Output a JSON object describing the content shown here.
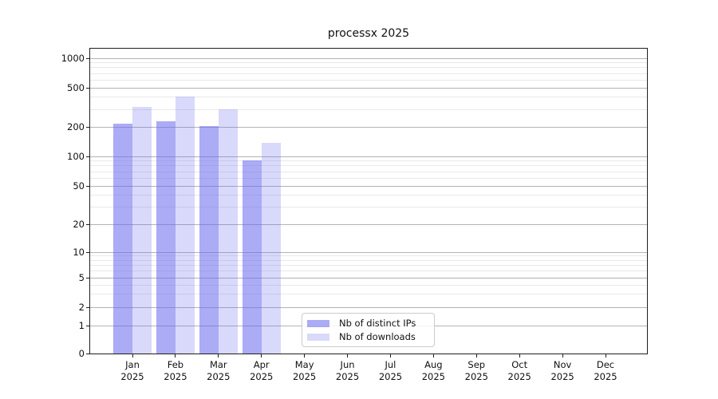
{
  "chart_data": {
    "type": "bar",
    "title": "processx 2025",
    "x_categories": [
      "Jan",
      "Feb",
      "Mar",
      "Apr",
      "May",
      "Jun",
      "Jul",
      "Aug",
      "Sep",
      "Oct",
      "Nov",
      "Dec"
    ],
    "x_year": "2025",
    "series": [
      {
        "name": "Nb of distinct IPs",
        "color": "rgba(102,102,238,0.55)",
        "values": [
          215,
          228,
          203,
          91,
          null,
          null,
          null,
          null,
          null,
          null,
          null,
          null
        ]
      },
      {
        "name": "Nb of downloads",
        "color": "rgba(102,102,238,0.25)",
        "values": [
          320,
          410,
          302,
          138,
          null,
          null,
          null,
          null,
          null,
          null,
          null,
          null
        ]
      }
    ],
    "y_axis": {
      "scale": "log-with-zero",
      "ticks": [
        0,
        1,
        2,
        5,
        10,
        20,
        50,
        100,
        200,
        500,
        1000
      ],
      "minor_gridlines": [
        3,
        4,
        6,
        7,
        8,
        9,
        30,
        40,
        60,
        70,
        80,
        90,
        300,
        400,
        600,
        700,
        800,
        900
      ],
      "ylim": [
        0,
        1250
      ]
    },
    "grid": true,
    "legend_position": "lower center"
  },
  "colors": {
    "major_grid": "#b3b3b3",
    "minor_grid": "#e9e9e9",
    "spine": "#1f1f1f",
    "text": "#111111",
    "legend_border": "#cccccc"
  }
}
